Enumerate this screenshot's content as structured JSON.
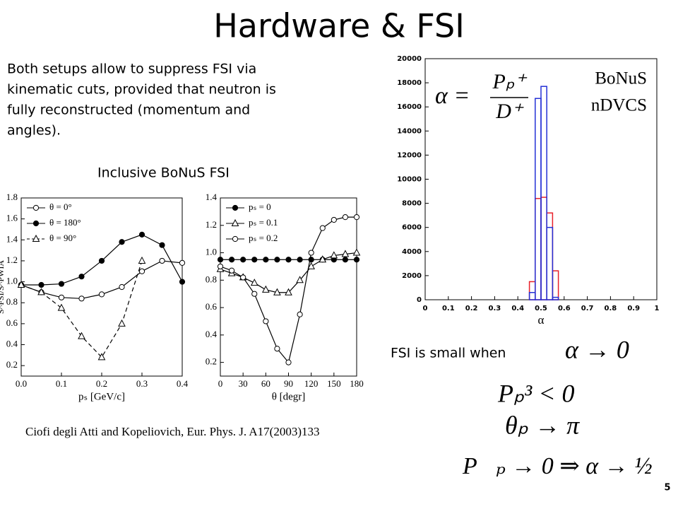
{
  "title": "Hardware & FSI",
  "intro": [
    "Both setups allow to suppress FSI via",
    "kinematic cuts, provided that neutron is",
    "fully reconstructed (momentum and",
    "angles)."
  ],
  "left_heading": "Inclusive BoNuS FSI",
  "citation": "Ciofi degli Atti and Kopeliovich, Eur. Phys. J. A17(2003)133",
  "condition_label": "FSI is small when",
  "conditions": [
    "α → 0",
    "Pₚ³ < 0",
    "θₚ → π",
    "P⃗ₚ → 0 ⇒ α → ½"
  ],
  "page_number": "5",
  "chart_data": [
    {
      "type": "line",
      "xlabel": "pₛ [GeV/c]",
      "ylabel": "S^FSI/S^PWIA",
      "x": [
        0,
        0.05,
        0.1,
        0.15,
        0.2,
        0.25,
        0.3,
        0.35,
        0.4
      ],
      "series": [
        {
          "name": "θ = 0°",
          "color": "#000000",
          "marker": "open-circle",
          "dash": false,
          "values": [
            0.97,
            0.9,
            0.85,
            0.84,
            0.88,
            0.95,
            1.1,
            1.2,
            1.18
          ]
        },
        {
          "name": "θ = 180°",
          "color": "#000000",
          "marker": "filled-circle",
          "dash": false,
          "values": [
            0.97,
            0.97,
            0.98,
            1.05,
            1.2,
            1.38,
            1.45,
            1.35,
            1.0
          ]
        },
        {
          "name": "θ = 90°",
          "color": "#000000",
          "marker": "open-triangle",
          "dash": true,
          "values": [
            0.97,
            0.9,
            0.75,
            0.48,
            0.28,
            0.6,
            1.2,
            null,
            null
          ]
        }
      ],
      "xlim": [
        0,
        0.4
      ],
      "ylim": [
        0.1,
        1.8
      ],
      "xticks": [
        {
          "value": 0,
          "label": "0.0"
        },
        0.1,
        0.2,
        0.3,
        0.4
      ],
      "yticks": [
        0.2,
        0.4,
        0.6,
        0.8,
        {
          "value": 1,
          "label": "1.0"
        },
        1.2,
        1.4,
        1.6,
        1.8
      ]
    },
    {
      "type": "line",
      "xlabel": "θ [degr]",
      "x": [
        0,
        15,
        30,
        45,
        60,
        75,
        90,
        105,
        120,
        135,
        150,
        165,
        180
      ],
      "series": [
        {
          "name": "pₛ = 0",
          "color": "#000000",
          "marker": "filled-circle",
          "dash": false,
          "values": [
            0.95,
            0.95,
            0.95,
            0.95,
            0.95,
            0.95,
            0.95,
            0.95,
            0.95,
            0.95,
            0.95,
            0.95,
            0.95
          ]
        },
        {
          "name": "pₛ = 0.1",
          "color": "#000000",
          "marker": "open-triangle",
          "dash": false,
          "values": [
            0.88,
            0.85,
            0.82,
            0.78,
            0.73,
            0.71,
            0.71,
            0.8,
            0.9,
            0.95,
            0.98,
            0.99,
            1.0
          ]
        },
        {
          "name": "pₛ = 0.2",
          "color": "#000000",
          "marker": "open-circle",
          "dash": false,
          "values": [
            0.9,
            0.87,
            0.82,
            0.7,
            0.5,
            0.3,
            0.2,
            0.55,
            1.0,
            1.18,
            1.24,
            1.26,
            1.26
          ]
        }
      ],
      "xlim": [
        0,
        180
      ],
      "ylim": [
        0.1,
        1.4
      ],
      "xticks": [
        0,
        30,
        60,
        90,
        120,
        150,
        180
      ],
      "yticks": [
        0.2,
        0.4,
        0.6,
        0.8,
        {
          "value": 1,
          "label": "1.0"
        },
        1.2,
        1.4
      ]
    },
    {
      "type": "histogram",
      "xlabel": "α",
      "bins": [
        0.425,
        0.45,
        0.475,
        0.5,
        0.525,
        0.55,
        0.575,
        0.6
      ],
      "series": [
        {
          "name": "BoNuS",
          "color": "#e8202a",
          "values": [
            0,
            1500,
            8400,
            8500,
            7200,
            2400,
            0
          ]
        },
        {
          "name": "nDVCS",
          "color": "#2431d6",
          "values": [
            0,
            600,
            16700,
            17700,
            6000,
            200,
            0
          ]
        }
      ],
      "xlim": [
        0,
        1
      ],
      "ylim": [
        0,
        20000
      ],
      "xticks": [
        0,
        0.1,
        0.2,
        0.3,
        0.4,
        0.5,
        0.6,
        0.7,
        0.8,
        0.9,
        1
      ],
      "yticks": [
        0,
        2000,
        4000,
        6000,
        8000,
        10000,
        12000,
        14000,
        16000,
        18000,
        20000
      ],
      "formula": {
        "lhs": "α =",
        "numerator": "Pₚ⁺",
        "denominator": "D⁺"
      }
    }
  ]
}
